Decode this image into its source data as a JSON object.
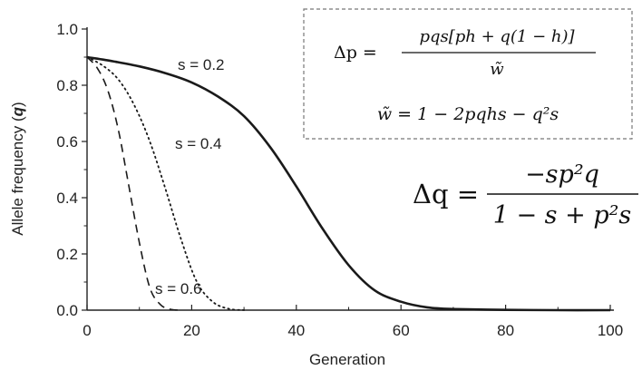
{
  "chart_data": {
    "type": "line",
    "xlabel": "Generation",
    "ylabel": "Allele frequency (q)",
    "ylabel_text": "Allele frequency (",
    "ylabel_var": "q",
    "ylabel_close": ")",
    "xlim": [
      0,
      100
    ],
    "ylim": [
      0.0,
      1.0
    ],
    "xticks": [
      0,
      20,
      40,
      60,
      80,
      100
    ],
    "xtick_labels": [
      "0",
      "20",
      "40",
      "60",
      "80",
      "100"
    ],
    "yticks": [
      0.0,
      0.2,
      0.4,
      0.6,
      0.8,
      1.0
    ],
    "ytick_labels": [
      "0.0",
      "0.2",
      "0.4",
      "0.6",
      "0.8",
      "1.0"
    ],
    "grid": false,
    "series": [
      {
        "name": "s = 0.2",
        "style": "solid",
        "x": [
          0,
          5,
          10,
          15,
          20,
          25,
          30,
          35,
          40,
          45,
          50,
          55,
          60,
          65,
          70,
          80,
          90,
          100
        ],
        "values": [
          0.9,
          0.885,
          0.867,
          0.843,
          0.81,
          0.76,
          0.69,
          0.58,
          0.44,
          0.29,
          0.16,
          0.07,
          0.03,
          0.01,
          0.004,
          0.001,
          0.0,
          0.0
        ]
      },
      {
        "name": "s = 0.4",
        "style": "dotted",
        "x": [
          0,
          3,
          6,
          9,
          12,
          15,
          18,
          21,
          24,
          27,
          30
        ],
        "values": [
          0.9,
          0.87,
          0.82,
          0.73,
          0.6,
          0.43,
          0.25,
          0.1,
          0.03,
          0.005,
          0.0
        ]
      },
      {
        "name": "s = 0.6",
        "style": "dashed",
        "x": [
          0,
          2,
          4,
          6,
          8,
          10,
          12,
          14,
          16,
          18
        ],
        "values": [
          0.9,
          0.86,
          0.78,
          0.64,
          0.44,
          0.24,
          0.08,
          0.02,
          0.003,
          0.0
        ]
      }
    ],
    "annotations": {
      "eq_delta_p": {
        "lhs": "Δp =",
        "num": "pqs[ph + q(1 − h)]",
        "den": "w̃"
      },
      "eq_w": "w̃ = 1 − 2pqhs − q²s",
      "eq_delta_q": {
        "lhs": "Δq =",
        "num": "−sp²q",
        "den": "1 − s + p²s"
      }
    }
  }
}
